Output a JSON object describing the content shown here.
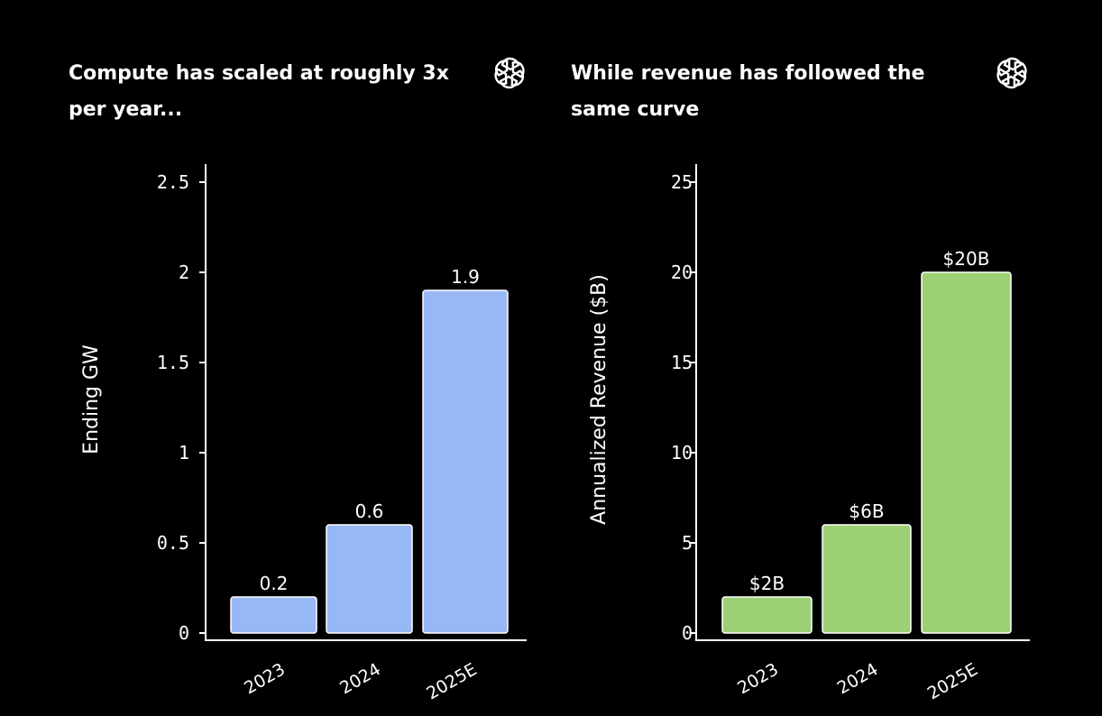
{
  "chart_data": [
    {
      "type": "bar",
      "title": "Compute has scaled at roughly 3x per year...",
      "xlabel": "",
      "ylabel": "Ending GW",
      "ylim": [
        0,
        2.6
      ],
      "yticks": [
        0,
        0.5,
        1,
        1.5,
        2,
        2.5
      ],
      "ytick_labels": [
        "0",
        "0.5",
        "1",
        "1.5",
        "2",
        "2.5"
      ],
      "categories": [
        "2023",
        "2024",
        "2025E"
      ],
      "values": [
        0.2,
        0.6,
        1.9
      ],
      "data_labels": [
        "0.2",
        "0.6",
        "1.9"
      ],
      "bar_color": "#98b8f5",
      "grid": false
    },
    {
      "type": "bar",
      "title": "While revenue has followed the same curve",
      "xlabel": "",
      "ylabel": "Annualized Revenue ($B)",
      "ylim": [
        0,
        26
      ],
      "yticks": [
        0,
        5,
        10,
        15,
        20,
        25
      ],
      "ytick_labels": [
        "0",
        "5",
        "10",
        "15",
        "20",
        "25"
      ],
      "categories": [
        "2023",
        "2024",
        "2025E"
      ],
      "values": [
        2,
        6,
        20
      ],
      "data_labels": [
        "$2B",
        "$6B",
        "$20B"
      ],
      "bar_color": "#9dd074",
      "grid": false
    }
  ],
  "logo_icon": "openai-logo-icon",
  "colors": {
    "background": "#000000",
    "foreground": "#ffffff"
  }
}
